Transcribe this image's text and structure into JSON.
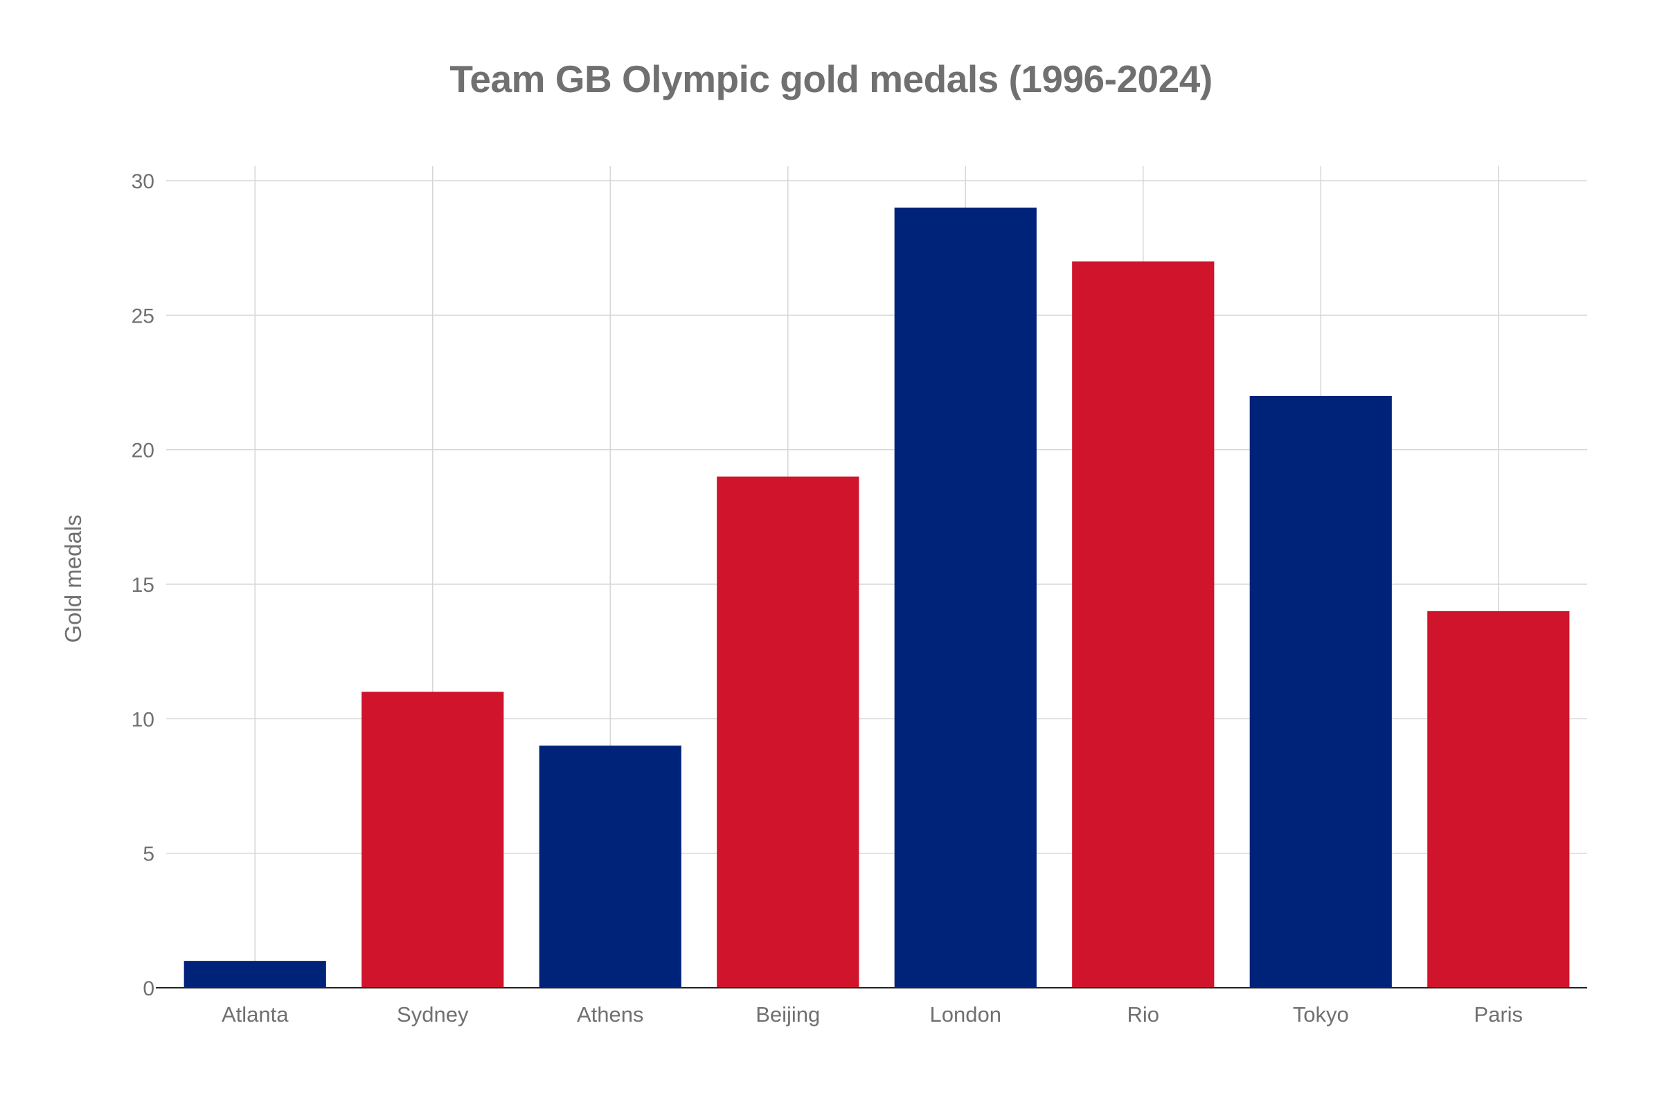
{
  "chart_data": {
    "type": "bar",
    "title": "Team GB Olympic gold medals (1996-2024)",
    "xlabel": "",
    "ylabel": "Gold medals",
    "categories": [
      "Atlanta",
      "Sydney",
      "Athens",
      "Beijing",
      "London",
      "Rio",
      "Tokyo",
      "Paris"
    ],
    "values": [
      1,
      11,
      9,
      19,
      29,
      27,
      22,
      14
    ],
    "bar_colors": [
      "#00237a",
      "#cf142b",
      "#00237a",
      "#cf142b",
      "#00237a",
      "#cf142b",
      "#00237a",
      "#cf142b"
    ],
    "ylim": [
      0,
      30
    ],
    "yticks": [
      0,
      5,
      10,
      15,
      20,
      25,
      30
    ],
    "grid": true,
    "legend": "none"
  },
  "colors": {
    "navy": "#00237a",
    "red": "#cf142b",
    "grid": "#d6d6d6",
    "text": "#707070"
  }
}
